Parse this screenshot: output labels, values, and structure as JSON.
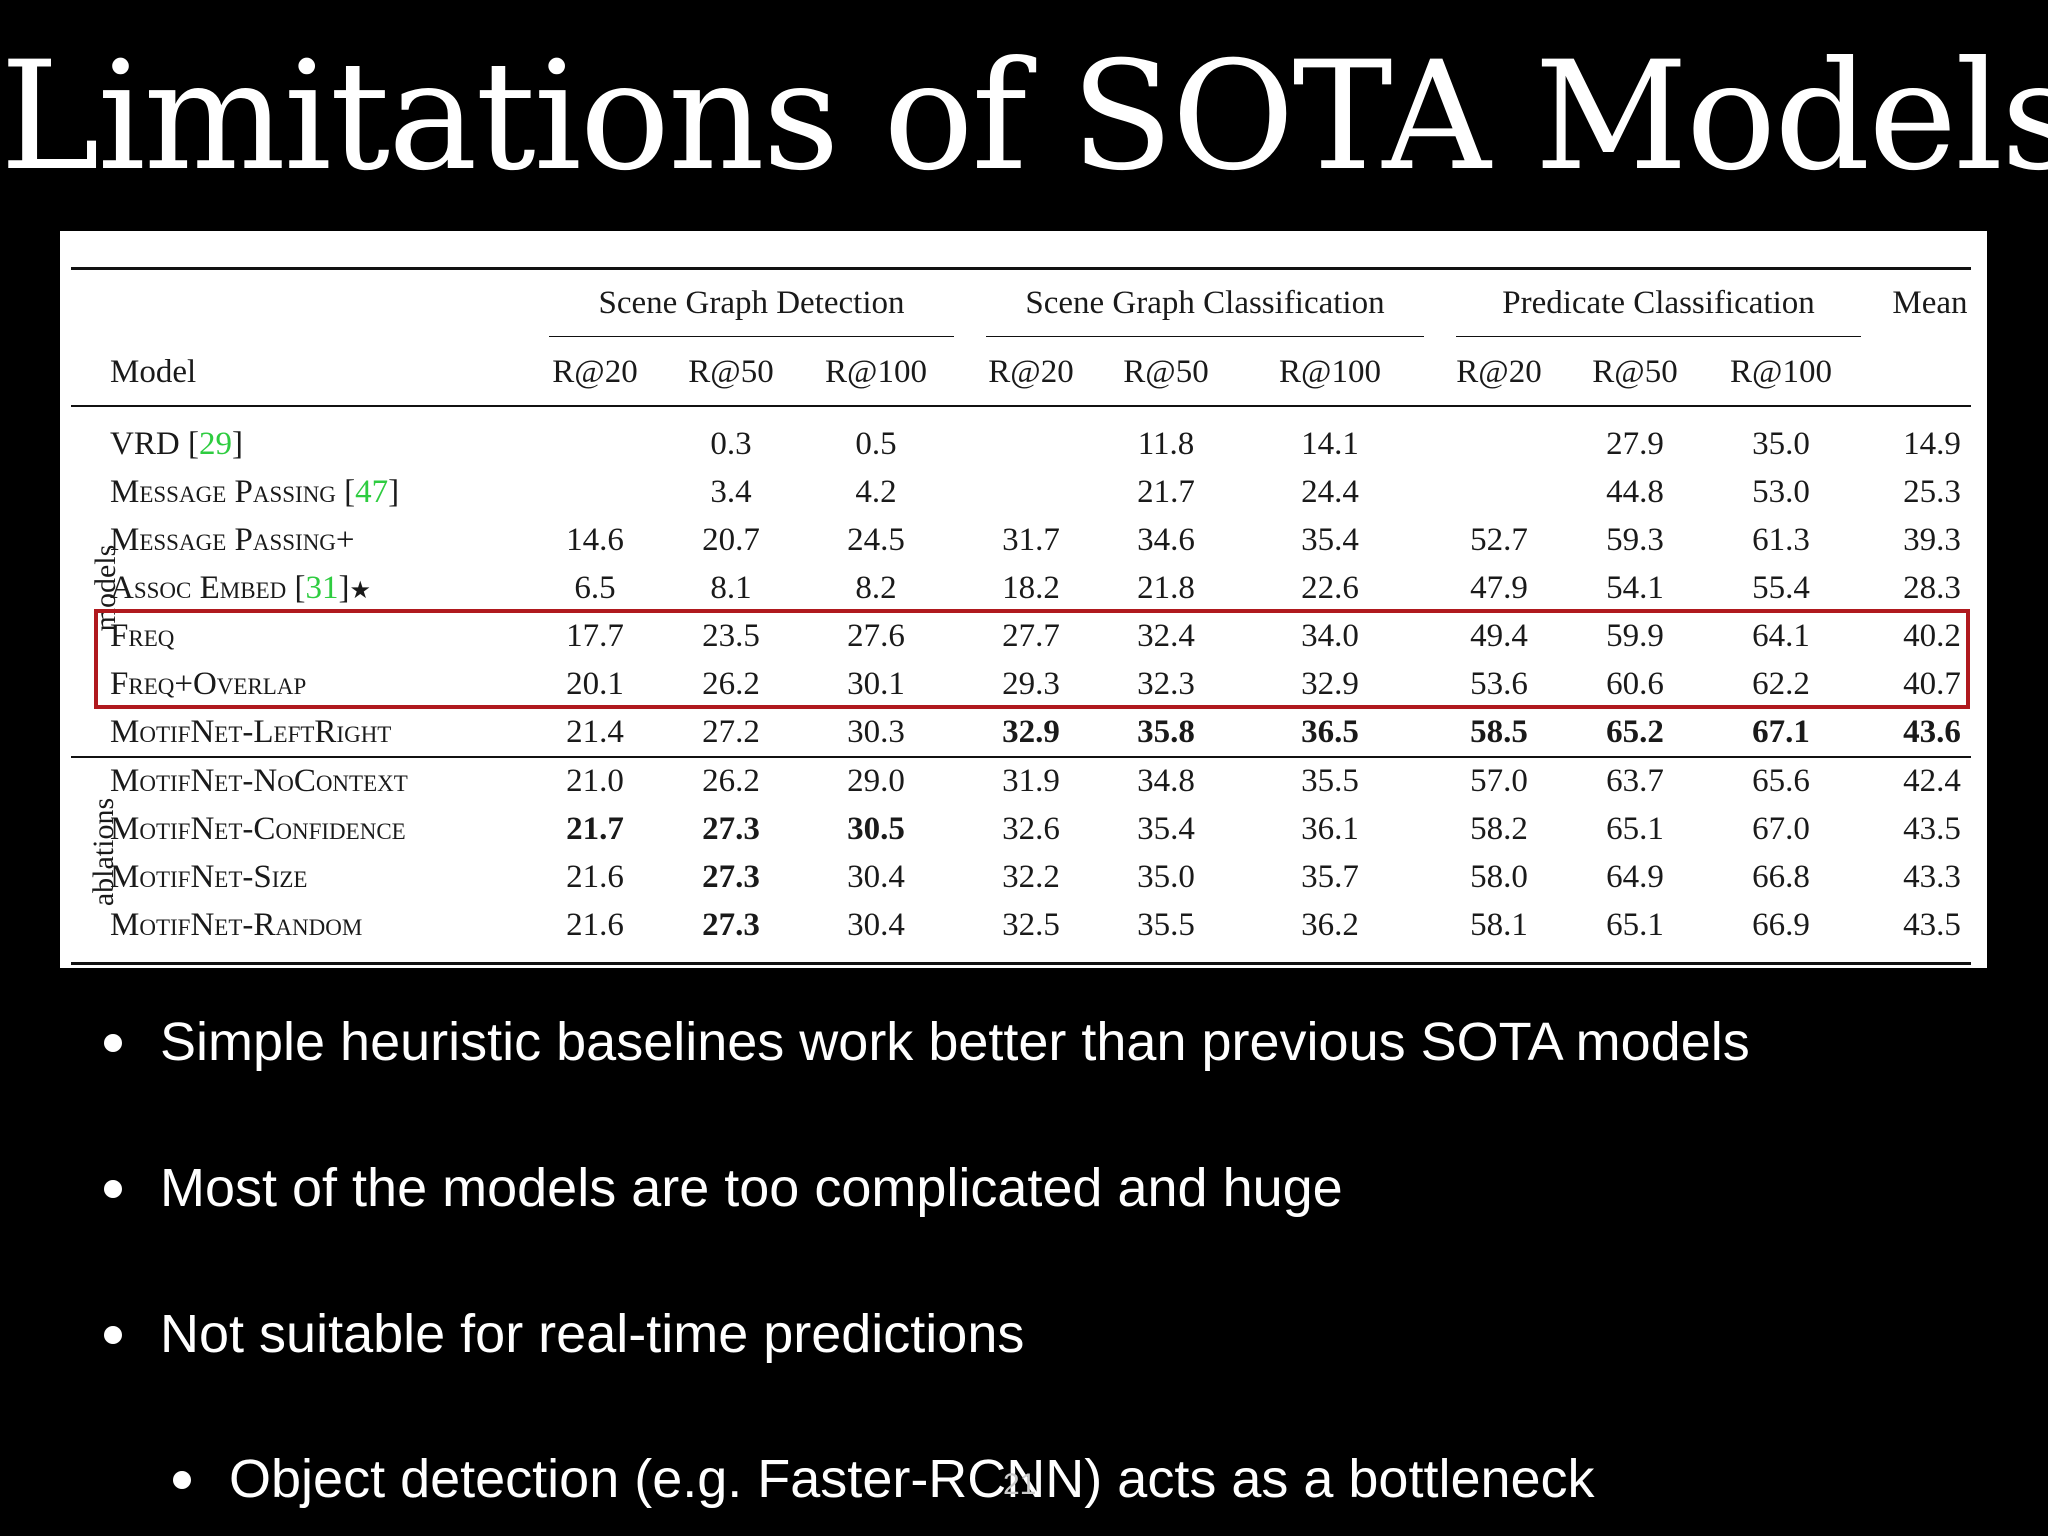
{
  "slide": {
    "title": "Limitations of SOTA Models",
    "page_number": "21"
  },
  "table": {
    "model_header": "Model",
    "mean_header": "Mean",
    "groups": [
      "Scene Graph Detection",
      "Scene Graph Classification",
      "Predicate Classification"
    ],
    "subcols": [
      "R@20",
      "R@50",
      "R@100",
      "R@20",
      "R@50",
      "R@100",
      "R@20",
      "R@50",
      "R@100"
    ],
    "section_labels": {
      "models": "models",
      "ablations": "ablations"
    },
    "rows": [
      {
        "name": "VRD",
        "cite": "29",
        "suffix": "",
        "values": [
          "",
          "0.3",
          "0.5",
          "",
          "11.8",
          "14.1",
          "",
          "27.9",
          "35.0",
          "14.9"
        ],
        "bold": []
      },
      {
        "name": "Message Passing",
        "cite": "47",
        "suffix": "",
        "values": [
          "",
          "3.4",
          "4.2",
          "",
          "21.7",
          "24.4",
          "",
          "44.8",
          "53.0",
          "25.3"
        ],
        "bold": []
      },
      {
        "name": "Message Passing+",
        "cite": "",
        "suffix": "",
        "values": [
          "14.6",
          "20.7",
          "24.5",
          "31.7",
          "34.6",
          "35.4",
          "52.7",
          "59.3",
          "61.3",
          "39.3"
        ],
        "bold": []
      },
      {
        "name": "Assoc Embed",
        "cite": "31",
        "suffix": "★",
        "values": [
          "6.5",
          "8.1",
          "8.2",
          "18.2",
          "21.8",
          "22.6",
          "47.9",
          "54.1",
          "55.4",
          "28.3"
        ],
        "bold": []
      },
      {
        "name": "Freq",
        "cite": "",
        "suffix": "",
        "values": [
          "17.7",
          "23.5",
          "27.6",
          "27.7",
          "32.4",
          "34.0",
          "49.4",
          "59.9",
          "64.1",
          "40.2"
        ],
        "bold": []
      },
      {
        "name": "Freq+Overlap",
        "cite": "",
        "suffix": "",
        "values": [
          "20.1",
          "26.2",
          "30.1",
          "29.3",
          "32.3",
          "32.9",
          "53.6",
          "60.6",
          "62.2",
          "40.7"
        ],
        "bold": []
      },
      {
        "name": "MotifNet-LeftRight",
        "cite": "",
        "suffix": "",
        "values": [
          "21.4",
          "27.2",
          "30.3",
          "32.9",
          "35.8",
          "36.5",
          "58.5",
          "65.2",
          "67.1",
          "43.6"
        ],
        "bold": [
          3,
          4,
          5,
          6,
          7,
          8,
          9
        ]
      },
      {
        "name": "MotifNet-NoContext",
        "cite": "",
        "suffix": "",
        "values": [
          "21.0",
          "26.2",
          "29.0",
          "31.9",
          "34.8",
          "35.5",
          "57.0",
          "63.7",
          "65.6",
          "42.4"
        ],
        "bold": []
      },
      {
        "name": "MotifNet-Confidence",
        "cite": "",
        "suffix": "",
        "values": [
          "21.7",
          "27.3",
          "30.5",
          "32.6",
          "35.4",
          "36.1",
          "58.2",
          "65.1",
          "67.0",
          "43.5"
        ],
        "bold": [
          0,
          1,
          2
        ]
      },
      {
        "name": "MotifNet-Size",
        "cite": "",
        "suffix": "",
        "values": [
          "21.6",
          "27.3",
          "30.4",
          "32.2",
          "35.0",
          "35.7",
          "58.0",
          "64.9",
          "66.8",
          "43.3"
        ],
        "bold": [
          1
        ]
      },
      {
        "name": "MotifNet-Random",
        "cite": "",
        "suffix": "",
        "values": [
          "21.6",
          "27.3",
          "30.4",
          "32.5",
          "35.5",
          "36.2",
          "58.1",
          "65.1",
          "66.9",
          "43.5"
        ],
        "bold": [
          1
        ]
      }
    ]
  },
  "bullets": [
    {
      "text": "Simple heuristic baselines work better than previous SOTA models",
      "level": 1
    },
    {
      "text": "Most of the models are too complicated and huge",
      "level": 1
    },
    {
      "text": "Not suitable for real-time predictions",
      "level": 1
    },
    {
      "text": "Object detection (e.g. Faster-RCNN) acts as a bottleneck",
      "level": 2
    }
  ]
}
